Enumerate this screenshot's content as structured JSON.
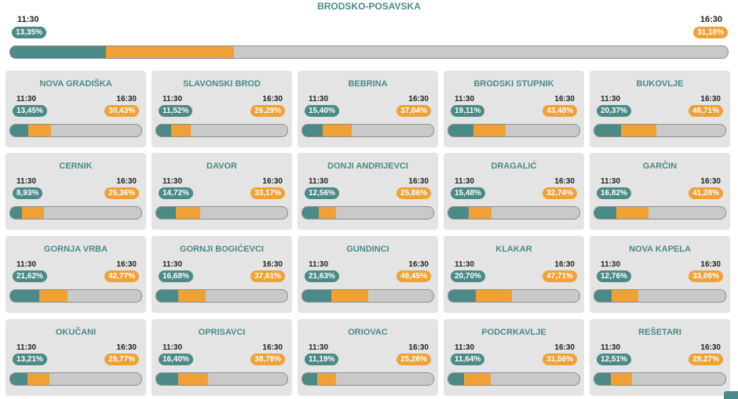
{
  "top": {
    "title": "BRODSKO-POSAVSKA",
    "time1": "11:30",
    "time2": "16:30",
    "pct1": "13,35%",
    "pct2": "31,18%",
    "v1": 13.35,
    "v2": 31.18
  },
  "colors": {
    "teal": "#4b8a87",
    "orange": "#f0a135",
    "track": "#c9c9c9"
  },
  "cards": [
    {
      "name": "NOVA GRADIŠKA",
      "time1": "11:30",
      "time2": "16:30",
      "pct1": "13,45%",
      "pct2": "30,43%",
      "v1": 13.45,
      "v2": 30.43
    },
    {
      "name": "SLAVONSKI BROD",
      "time1": "11:30",
      "time2": "16:30",
      "pct1": "11,52%",
      "pct2": "26,29%",
      "v1": 11.52,
      "v2": 26.29
    },
    {
      "name": "BEBRINA",
      "time1": "11:30",
      "time2": "16:30",
      "pct1": "15,40%",
      "pct2": "37,04%",
      "v1": 15.4,
      "v2": 37.04
    },
    {
      "name": "BRODSKI STUPNIK",
      "time1": "11:30",
      "time2": "16:30",
      "pct1": "19,11%",
      "pct2": "43,48%",
      "v1": 19.11,
      "v2": 43.48
    },
    {
      "name": "BUKOVLJE",
      "time1": "11:30",
      "time2": "16:30",
      "pct1": "20,37%",
      "pct2": "46,71%",
      "v1": 20.37,
      "v2": 46.71
    },
    {
      "name": "CERNIK",
      "time1": "11:30",
      "time2": "16:30",
      "pct1": "8,93%",
      "pct2": "25,36%",
      "v1": 8.93,
      "v2": 25.36
    },
    {
      "name": "DAVOR",
      "time1": "11:30",
      "time2": "16:30",
      "pct1": "14,72%",
      "pct2": "33,17%",
      "v1": 14.72,
      "v2": 33.17
    },
    {
      "name": "DONJI ANDRIJEVCI",
      "time1": "11:30",
      "time2": "16:30",
      "pct1": "12,56%",
      "pct2": "25,86%",
      "v1": 12.56,
      "v2": 25.86
    },
    {
      "name": "DRAGALIĆ",
      "time1": "11:30",
      "time2": "16:30",
      "pct1": "15,48%",
      "pct2": "32,74%",
      "v1": 15.48,
      "v2": 32.74
    },
    {
      "name": "GARČIN",
      "time1": "11:30",
      "time2": "16:30",
      "pct1": "16,82%",
      "pct2": "41,28%",
      "v1": 16.82,
      "v2": 41.28
    },
    {
      "name": "GORNJA VRBA",
      "time1": "11:30",
      "time2": "16:30",
      "pct1": "21,62%",
      "pct2": "42,77%",
      "v1": 21.62,
      "v2": 42.77
    },
    {
      "name": "GORNJI BOGIĆEVCI",
      "time1": "11:30",
      "time2": "16:30",
      "pct1": "16,68%",
      "pct2": "37,61%",
      "v1": 16.68,
      "v2": 37.61
    },
    {
      "name": "GUNDINCI",
      "time1": "11:30",
      "time2": "16:30",
      "pct1": "21,63%",
      "pct2": "49,45%",
      "v1": 21.63,
      "v2": 49.45
    },
    {
      "name": "KLAKAR",
      "time1": "11:30",
      "time2": "16:30",
      "pct1": "20,70%",
      "pct2": "47,71%",
      "v1": 20.7,
      "v2": 47.71
    },
    {
      "name": "NOVA KAPELA",
      "time1": "11:30",
      "time2": "16:30",
      "pct1": "12,76%",
      "pct2": "33,06%",
      "v1": 12.76,
      "v2": 33.06
    },
    {
      "name": "OKUČANI",
      "time1": "11:30",
      "time2": "16:30",
      "pct1": "13,21%",
      "pct2": "29,77%",
      "v1": 13.21,
      "v2": 29.77
    },
    {
      "name": "OPRISAVCI",
      "time1": "11:30",
      "time2": "16:30",
      "pct1": "16,40%",
      "pct2": "38,78%",
      "v1": 16.4,
      "v2": 38.78
    },
    {
      "name": "ORIOVAC",
      "time1": "11:30",
      "time2": "16:30",
      "pct1": "11,19%",
      "pct2": "25,28%",
      "v1": 11.19,
      "v2": 25.28
    },
    {
      "name": "PODCRKAVLJE",
      "time1": "11:30",
      "time2": "16:30",
      "pct1": "11,64%",
      "pct2": "31,56%",
      "v1": 11.64,
      "v2": 31.56
    },
    {
      "name": "REŠETARI",
      "time1": "11:30",
      "time2": "16:30",
      "pct1": "12,51%",
      "pct2": "28,27%",
      "v1": 12.51,
      "v2": 28.27
    }
  ]
}
